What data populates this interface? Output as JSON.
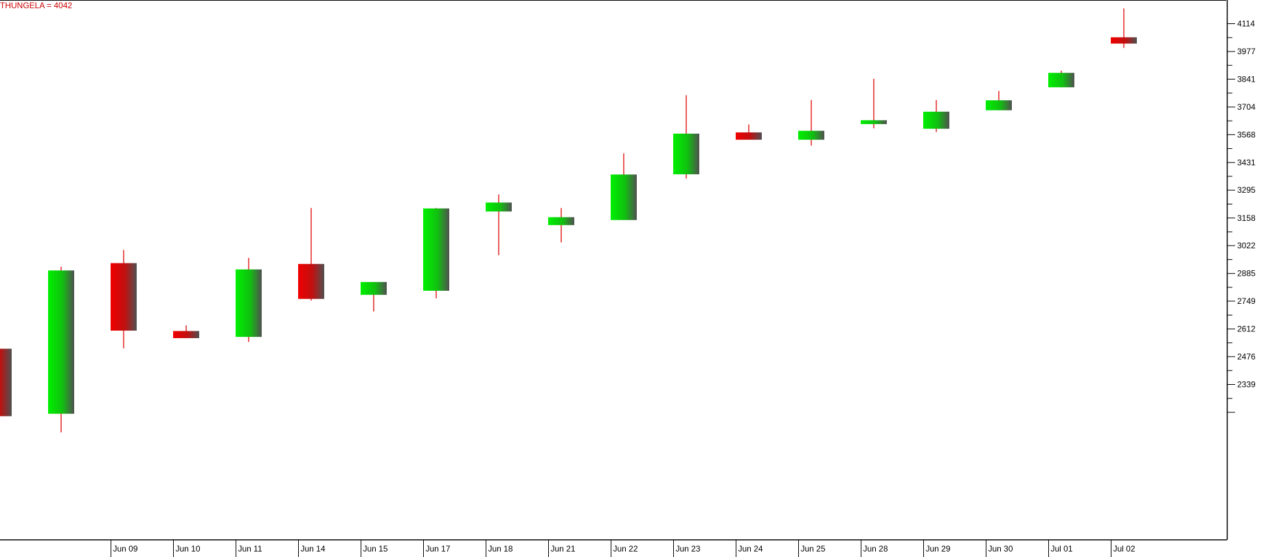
{
  "chart_data": {
    "type": "candlestick",
    "title": "THUNGELA = 4042",
    "y_ticks": [
      2339,
      2476,
      2612,
      2749,
      2885,
      3022,
      3158,
      3295,
      3431,
      3568,
      3704,
      3841,
      3977,
      4114
    ],
    "date_labels": [
      "Jun 09",
      "Jun 10",
      "Jun 11",
      "Jun 14",
      "Jun 15",
      "Jun 17",
      "Jun 18",
      "Jun 21",
      "Jun 22",
      "Jun 23",
      "Jun 24",
      "Jun 25",
      "Jun 28",
      "Jun 29",
      "Jun 30",
      "Jul 01",
      "Jul 02"
    ],
    "candles": [
      {
        "date": "",
        "open": 2515,
        "high": 2515,
        "low": 2183,
        "close": 2183
      },
      {
        "date": "",
        "open": 2195,
        "high": 2918,
        "low": 2103,
        "close": 2900
      },
      {
        "date": "Jun 09",
        "open": 2936,
        "high": 3001,
        "low": 2517,
        "close": 2604
      },
      {
        "date": "Jun 10",
        "open": 2602,
        "high": 2630,
        "low": 2568,
        "close": 2567
      },
      {
        "date": "Jun 11",
        "open": 2573,
        "high": 2962,
        "low": 2548,
        "close": 2905
      },
      {
        "date": "Jun 14",
        "open": 2932,
        "high": 3207,
        "low": 2752,
        "close": 2760
      },
      {
        "date": "Jun 15",
        "open": 2780,
        "high": 2843,
        "low": 2698,
        "close": 2843
      },
      {
        "date": "Jun 17",
        "open": 2800,
        "high": 3207,
        "low": 2763,
        "close": 3205
      },
      {
        "date": "Jun 18",
        "open": 3190,
        "high": 3274,
        "low": 2975,
        "close": 3234
      },
      {
        "date": "Jun 21",
        "open": 3123,
        "high": 3207,
        "low": 3038,
        "close": 3162
      },
      {
        "date": "Jun 22",
        "open": 3148,
        "high": 3476,
        "low": 3148,
        "close": 3372
      },
      {
        "date": "Jun 23",
        "open": 3373,
        "high": 3762,
        "low": 3352,
        "close": 3573
      },
      {
        "date": "Jun 24",
        "open": 3579,
        "high": 3618,
        "low": 3547,
        "close": 3543
      },
      {
        "date": "Jun 25",
        "open": 3543,
        "high": 3739,
        "low": 3514,
        "close": 3587
      },
      {
        "date": "Jun 28",
        "open": 3620,
        "high": 3843,
        "low": 3599,
        "close": 3639
      },
      {
        "date": "Jun 29",
        "open": 3597,
        "high": 3738,
        "low": 3581,
        "close": 3681
      },
      {
        "date": "Jun 30",
        "open": 3688,
        "high": 3783,
        "low": 3688,
        "close": 3737
      },
      {
        "date": "Jul 01",
        "open": 3801,
        "high": 3883,
        "low": 3801,
        "close": 3872
      },
      {
        "date": "Jul 02",
        "open": 4047,
        "high": 4189,
        "low": 3995,
        "close": 4016
      }
    ],
    "colors": {
      "up": "#00e000",
      "down": "#e00000",
      "wick": "#e00000",
      "title": "#cc0000",
      "axis": "#000000"
    }
  }
}
